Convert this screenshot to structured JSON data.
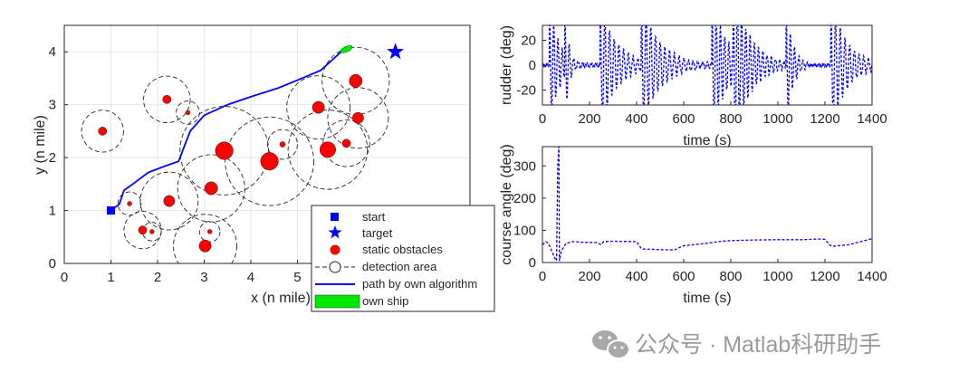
{
  "watermark": {
    "text": "公众号 · Matlab科研助手",
    "icon": "wechat-icon"
  },
  "chart_data": [
    {
      "id": "trajectory",
      "type": "scatter",
      "title": "",
      "xlabel": "x (n mile)",
      "ylabel": "y (n mile)",
      "xlim": [
        0,
        8.7
      ],
      "ylim": [
        0,
        4.5
      ],
      "xticks": [
        0,
        1,
        2,
        3,
        4,
        5
      ],
      "xtick_labels": [
        "0",
        "1",
        "2",
        "3",
        "4",
        "5"
      ],
      "yticks": [
        0,
        1,
        2,
        3,
        4
      ],
      "ytick_labels": [
        "0",
        "1",
        "2",
        "3",
        "4"
      ],
      "grid": true,
      "start": [
        1.0,
        1.0
      ],
      "target": [
        7.1,
        4.0
      ],
      "own_ship": [
        6.05,
        4.05
      ],
      "obstacles": [
        {
          "x": 0.82,
          "y": 2.5,
          "r": 0.09,
          "detect": 0.45
        },
        {
          "x": 2.2,
          "y": 3.1,
          "r": 0.09,
          "detect": 0.5
        },
        {
          "x": 2.65,
          "y": 2.85,
          "r": 0.04,
          "detect": 0.25
        },
        {
          "x": 1.4,
          "y": 1.13,
          "r": 0.04,
          "detect": 0.25
        },
        {
          "x": 1.68,
          "y": 0.63,
          "r": 0.09,
          "detect": 0.4
        },
        {
          "x": 1.88,
          "y": 0.6,
          "r": 0.03,
          "detect": 0.2
        },
        {
          "x": 2.25,
          "y": 1.18,
          "r": 0.12,
          "detect": 0.62
        },
        {
          "x": 3.15,
          "y": 1.42,
          "r": 0.14,
          "detect": 0.72
        },
        {
          "x": 3.43,
          "y": 2.13,
          "r": 0.19,
          "detect": 0.95
        },
        {
          "x": 3.02,
          "y": 0.33,
          "r": 0.13,
          "detect": 0.68
        },
        {
          "x": 3.12,
          "y": 0.6,
          "r": 0.03,
          "detect": 0.22
        },
        {
          "x": 4.4,
          "y": 1.93,
          "r": 0.19,
          "detect": 0.95
        },
        {
          "x": 4.68,
          "y": 2.25,
          "r": 0.06,
          "detect": 0.32
        },
        {
          "x": 5.45,
          "y": 2.95,
          "r": 0.13,
          "detect": 0.68
        },
        {
          "x": 5.65,
          "y": 2.15,
          "r": 0.17,
          "detect": 0.85
        },
        {
          "x": 6.05,
          "y": 2.27,
          "r": 0.09,
          "detect": 0.5
        },
        {
          "x": 6.25,
          "y": 3.45,
          "r": 0.14,
          "detect": 0.72
        },
        {
          "x": 6.3,
          "y": 2.75,
          "r": 0.12,
          "detect": 0.65
        }
      ],
      "path": [
        [
          1.0,
          1.0
        ],
        [
          1.18,
          1.12
        ],
        [
          1.28,
          1.38
        ],
        [
          1.5,
          1.52
        ],
        [
          1.8,
          1.72
        ],
        [
          2.1,
          1.82
        ],
        [
          2.45,
          1.93
        ],
        [
          2.7,
          2.5
        ],
        [
          3.0,
          2.8
        ],
        [
          3.5,
          3.0
        ],
        [
          4.0,
          3.15
        ],
        [
          4.6,
          3.32
        ],
        [
          5.1,
          3.5
        ],
        [
          5.5,
          3.65
        ],
        [
          5.75,
          3.85
        ],
        [
          6.0,
          4.05
        ]
      ],
      "legend": {
        "position": "bottom-right",
        "entries": [
          "start",
          "target",
          "static obstacles",
          "detection area",
          "path by own algorithm",
          "own ship"
        ]
      },
      "colors": {
        "path": "#0000ff",
        "marker": "#0000ff",
        "obstacle": "#ff0000",
        "ship": "#00e600"
      }
    },
    {
      "id": "rudder",
      "type": "line",
      "title": "",
      "xlabel": "time (s)",
      "ylabel": "rudder (deg)",
      "xlim": [
        0,
        1400
      ],
      "ylim": [
        -32,
        32
      ],
      "xticks": [
        0,
        200,
        400,
        600,
        800,
        1000,
        1200,
        1400
      ],
      "xtick_labels": [
        "0",
        "200",
        "400",
        "600",
        "800",
        "1000",
        "1200",
        "1400"
      ],
      "yticks": [
        -20,
        0,
        20
      ],
      "ytick_labels": [
        "-20",
        "0",
        "20"
      ],
      "grid": false,
      "events": [
        {
          "t": 30,
          "amp": 32,
          "tau": 40,
          "period": 18
        },
        {
          "t": 95,
          "amp": 32,
          "tau": 20,
          "period": 18
        },
        {
          "t": 245,
          "amp": 32,
          "tau": 70,
          "period": 20
        },
        {
          "t": 420,
          "amp": 32,
          "tau": 80,
          "period": 20
        },
        {
          "t": 720,
          "amp": 32,
          "tau": 70,
          "period": 18
        },
        {
          "t": 810,
          "amp": 32,
          "tau": 70,
          "period": 18
        },
        {
          "t": 1035,
          "amp": 32,
          "tau": 30,
          "period": 18
        },
        {
          "t": 1225,
          "amp": 32,
          "tau": 70,
          "period": 20
        }
      ],
      "line_style": "dashed",
      "color": "#0000ff"
    },
    {
      "id": "course",
      "type": "line",
      "title": "",
      "xlabel": "time (s)",
      "ylabel": "course angle (deg)",
      "xlim": [
        0,
        1400
      ],
      "ylim": [
        0,
        360
      ],
      "xticks": [
        0,
        200,
        400,
        600,
        800,
        1000,
        1200,
        1400
      ],
      "xtick_labels": [
        "0",
        "200",
        "400",
        "600",
        "800",
        "1000",
        "1200",
        "1400"
      ],
      "yticks": [
        0,
        100,
        200,
        300
      ],
      "ytick_labels": [
        "0",
        "100",
        "200",
        "300"
      ],
      "grid": false,
      "t": [
        0,
        15,
        25,
        40,
        55,
        60,
        65,
        70,
        72,
        80,
        100,
        130,
        170,
        230,
        250,
        260,
        300,
        400,
        420,
        430,
        500,
        560,
        600,
        700,
        760,
        800,
        900,
        1000,
        1100,
        1180,
        1200,
        1220,
        1230,
        1300,
        1400
      ],
      "values": [
        55,
        65,
        60,
        35,
        10,
        5,
        300,
        360,
        5,
        35,
        60,
        65,
        63,
        62,
        55,
        65,
        66,
        65,
        43,
        42,
        40,
        39,
        52,
        60,
        66,
        68,
        70,
        71,
        71,
        73,
        72,
        55,
        50,
        55,
        74
      ],
      "line_style": "dashed",
      "color": "#0000ff"
    }
  ]
}
